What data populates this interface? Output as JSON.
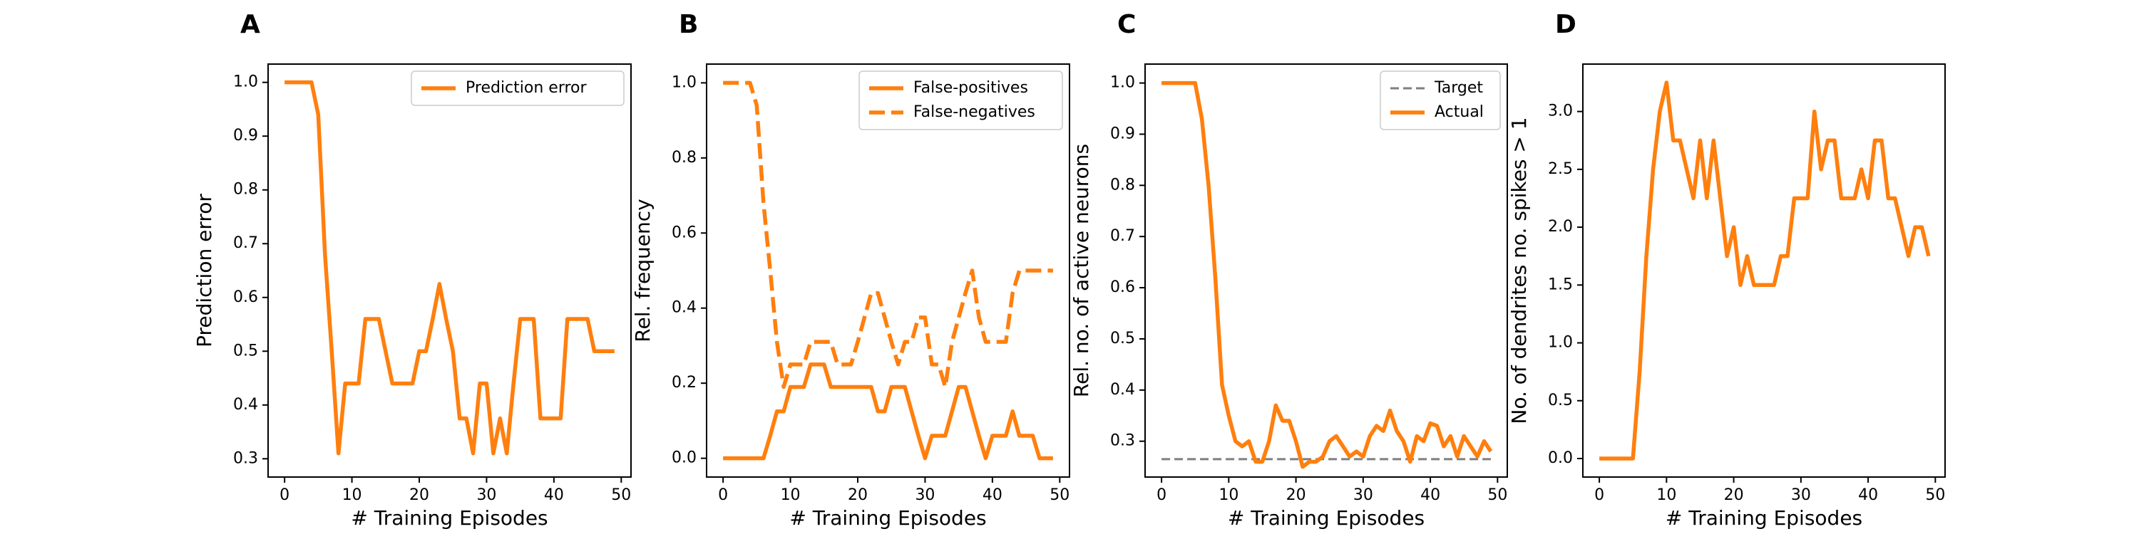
{
  "colors": {
    "series": "#ff7f0e",
    "target": "#7f7f7f",
    "axis": "#000000",
    "legend_edge": "#cccccc"
  },
  "chart_data": [
    {
      "type": "line",
      "panel_letter": "A",
      "xlabel": "# Training Episodes",
      "ylabel": "Prediction error",
      "xlim": [
        -2.45,
        51.45
      ],
      "ylim": [
        0.266,
        1.034
      ],
      "xticks": [
        0,
        10,
        20,
        30,
        40,
        50
      ],
      "yticks": [
        0.3,
        0.4,
        0.5,
        0.6,
        0.7,
        0.8,
        0.9,
        1.0
      ],
      "ytick_labels": [
        "0.3",
        "0.4",
        "0.5",
        "0.6",
        "0.7",
        "0.8",
        "0.9",
        "1.0"
      ],
      "legend_position": "top-right",
      "series": [
        {
          "name": "Prediction error",
          "style": "solid",
          "x": [
            0,
            1,
            2,
            3,
            4,
            5,
            6,
            7,
            8,
            9,
            10,
            11,
            12,
            13,
            14,
            15,
            16,
            17,
            18,
            19,
            20,
            21,
            22,
            23,
            24,
            25,
            26,
            27,
            28,
            29,
            30,
            31,
            32,
            33,
            34,
            35,
            36,
            37,
            38,
            39,
            40,
            41,
            42,
            43,
            44,
            45,
            46,
            47,
            48,
            49
          ],
          "y": [
            1.0,
            1.0,
            1.0,
            1.0,
            1.0,
            0.94,
            0.68,
            0.5,
            0.31,
            0.44,
            0.44,
            0.44,
            0.56,
            0.56,
            0.56,
            0.5,
            0.44,
            0.44,
            0.44,
            0.44,
            0.5,
            0.5,
            0.56,
            0.625,
            0.56,
            0.5,
            0.375,
            0.375,
            0.31,
            0.44,
            0.44,
            0.31,
            0.375,
            0.31,
            0.44,
            0.56,
            0.56,
            0.56,
            0.375,
            0.375,
            0.375,
            0.375,
            0.56,
            0.56,
            0.56,
            0.56,
            0.5,
            0.5,
            0.5,
            0.5
          ]
        }
      ]
    },
    {
      "type": "line",
      "panel_letter": "B",
      "xlabel": "# Training Episodes",
      "ylabel": "Rel. frequency",
      "xlim": [
        -2.45,
        51.45
      ],
      "ylim": [
        -0.05,
        1.05
      ],
      "xticks": [
        0,
        10,
        20,
        30,
        40,
        50
      ],
      "yticks": [
        0.0,
        0.2,
        0.4,
        0.6,
        0.8,
        1.0
      ],
      "ytick_labels": [
        "0.0",
        "0.2",
        "0.4",
        "0.6",
        "0.8",
        "1.0"
      ],
      "legend_position": "top-right",
      "series": [
        {
          "name": "False-positives",
          "style": "solid",
          "x": [
            0,
            1,
            2,
            3,
            4,
            5,
            6,
            7,
            8,
            9,
            10,
            11,
            12,
            13,
            14,
            15,
            16,
            17,
            18,
            19,
            20,
            21,
            22,
            23,
            24,
            25,
            26,
            27,
            28,
            29,
            30,
            31,
            32,
            33,
            34,
            35,
            36,
            37,
            38,
            39,
            40,
            41,
            42,
            43,
            44,
            45,
            46,
            47,
            48,
            49
          ],
          "y": [
            0.0,
            0.0,
            0.0,
            0.0,
            0.0,
            0.0,
            0.0,
            0.06,
            0.125,
            0.125,
            0.19,
            0.19,
            0.19,
            0.25,
            0.25,
            0.25,
            0.19,
            0.19,
            0.19,
            0.19,
            0.19,
            0.19,
            0.19,
            0.125,
            0.125,
            0.19,
            0.19,
            0.19,
            0.125,
            0.06,
            0.0,
            0.06,
            0.06,
            0.06,
            0.125,
            0.19,
            0.19,
            0.125,
            0.06,
            0.0,
            0.06,
            0.06,
            0.06,
            0.125,
            0.06,
            0.06,
            0.06,
            0.0,
            0.0,
            0.0
          ]
        },
        {
          "name": "False-negatives",
          "style": "dashed",
          "x": [
            0,
            1,
            2,
            3,
            4,
            5,
            6,
            7,
            8,
            9,
            10,
            11,
            12,
            13,
            14,
            15,
            16,
            17,
            18,
            19,
            20,
            21,
            22,
            23,
            24,
            25,
            26,
            27,
            28,
            29,
            30,
            31,
            32,
            33,
            34,
            35,
            36,
            37,
            38,
            39,
            40,
            41,
            42,
            43,
            44,
            45,
            46,
            47,
            48,
            49
          ],
          "y": [
            1.0,
            1.0,
            1.0,
            1.0,
            1.0,
            0.94,
            0.68,
            0.5,
            0.31,
            0.19,
            0.25,
            0.25,
            0.25,
            0.31,
            0.31,
            0.31,
            0.31,
            0.25,
            0.25,
            0.25,
            0.31,
            0.375,
            0.44,
            0.44,
            0.375,
            0.31,
            0.25,
            0.31,
            0.31,
            0.375,
            0.375,
            0.25,
            0.25,
            0.19,
            0.31,
            0.375,
            0.44,
            0.5,
            0.375,
            0.31,
            0.31,
            0.31,
            0.31,
            0.44,
            0.5,
            0.5,
            0.5,
            0.5,
            0.5,
            0.5
          ]
        }
      ]
    },
    {
      "type": "line",
      "panel_letter": "C",
      "xlabel": "# Training Episodes",
      "ylabel": "Rel. no. of active neurons",
      "xlim": [
        -2.45,
        51.45
      ],
      "ylim": [
        0.23,
        1.037
      ],
      "xticks": [
        0,
        10,
        20,
        30,
        40,
        50
      ],
      "yticks": [
        0.3,
        0.4,
        0.5,
        0.6,
        0.7,
        0.8,
        0.9,
        1.0
      ],
      "ytick_labels": [
        "0.3",
        "0.4",
        "0.5",
        "0.6",
        "0.7",
        "0.8",
        "0.9",
        "1.0"
      ],
      "legend_position": "top-right",
      "series": [
        {
          "name": "Target",
          "style": "dashed-thin",
          "x": [
            0,
            49
          ],
          "y": [
            0.265,
            0.265
          ]
        },
        {
          "name": "Actual",
          "style": "solid",
          "x": [
            0,
            1,
            2,
            3,
            4,
            5,
            6,
            7,
            8,
            9,
            10,
            11,
            12,
            13,
            14,
            15,
            16,
            17,
            18,
            19,
            20,
            21,
            22,
            23,
            24,
            25,
            26,
            27,
            28,
            29,
            30,
            31,
            32,
            33,
            34,
            35,
            36,
            37,
            38,
            39,
            40,
            41,
            42,
            43,
            44,
            45,
            46,
            47,
            48,
            49
          ],
          "y": [
            1.0,
            1.0,
            1.0,
            1.0,
            1.0,
            1.0,
            0.93,
            0.8,
            0.62,
            0.41,
            0.35,
            0.3,
            0.29,
            0.3,
            0.26,
            0.26,
            0.3,
            0.37,
            0.34,
            0.34,
            0.3,
            0.25,
            0.26,
            0.26,
            0.27,
            0.3,
            0.31,
            0.29,
            0.27,
            0.28,
            0.27,
            0.31,
            0.33,
            0.32,
            0.36,
            0.32,
            0.3,
            0.26,
            0.31,
            0.3,
            0.335,
            0.33,
            0.29,
            0.31,
            0.27,
            0.31,
            0.29,
            0.27,
            0.3,
            0.28
          ]
        }
      ]
    },
    {
      "type": "line",
      "panel_letter": "D",
      "xlabel": "# Training Episodes",
      "ylabel": "No. of dendrites no. spikes > 1",
      "xlim": [
        -2.45,
        51.45
      ],
      "ylim": [
        -0.16,
        3.41
      ],
      "xticks": [
        0,
        10,
        20,
        30,
        40,
        50
      ],
      "yticks": [
        0.0,
        0.5,
        1.0,
        1.5,
        2.0,
        2.5,
        3.0
      ],
      "ytick_labels": [
        "0.0",
        "0.5",
        "1.0",
        "1.5",
        "2.0",
        "2.5",
        "3.0"
      ],
      "legend_position": "none",
      "series": [
        {
          "name": "",
          "style": "solid",
          "x": [
            0,
            1,
            2,
            3,
            4,
            5,
            6,
            7,
            8,
            9,
            10,
            11,
            12,
            13,
            14,
            15,
            16,
            17,
            18,
            19,
            20,
            21,
            22,
            23,
            24,
            25,
            26,
            27,
            28,
            29,
            30,
            31,
            32,
            33,
            34,
            35,
            36,
            37,
            38,
            39,
            40,
            41,
            42,
            43,
            44,
            45,
            46,
            47,
            48,
            49
          ],
          "y": [
            0.0,
            0.0,
            0.0,
            0.0,
            0.0,
            0.0,
            0.75,
            1.75,
            2.5,
            3.0,
            3.25,
            2.75,
            2.75,
            2.5,
            2.25,
            2.75,
            2.25,
            2.75,
            2.25,
            1.75,
            2.0,
            1.5,
            1.75,
            1.5,
            1.5,
            1.5,
            1.5,
            1.75,
            1.75,
            2.25,
            2.25,
            2.25,
            3.0,
            2.5,
            2.75,
            2.75,
            2.25,
            2.25,
            2.25,
            2.5,
            2.25,
            2.75,
            2.75,
            2.25,
            2.25,
            2.0,
            1.75,
            2.0,
            2.0,
            1.75
          ]
        }
      ]
    }
  ]
}
